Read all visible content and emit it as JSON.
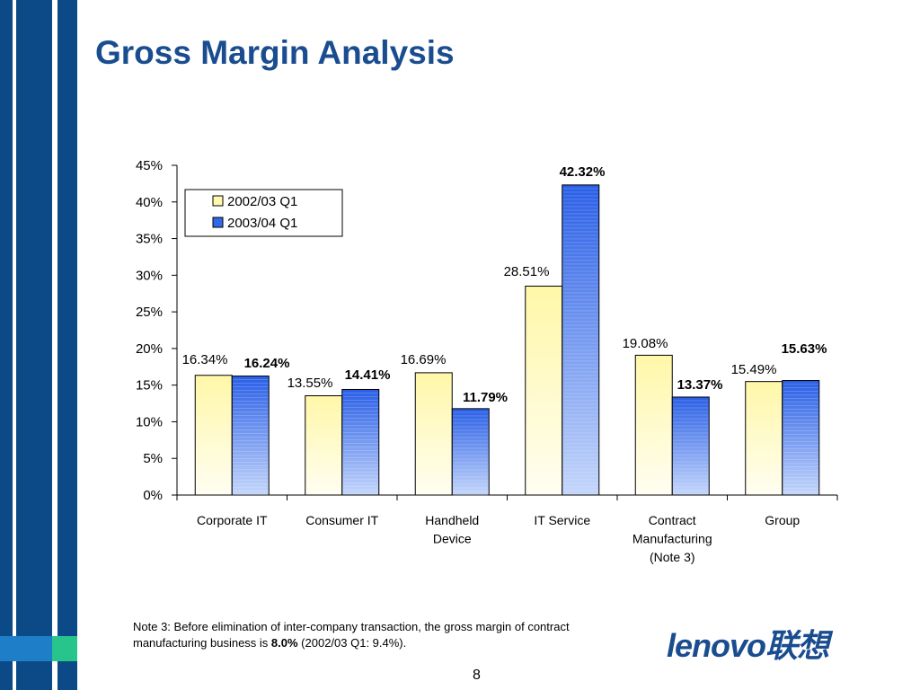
{
  "slide": {
    "title": "Gross Margin Analysis",
    "note_prefix": "Note 3:  Before elimination of inter-company transaction, the gross margin of contract manufacturing business is ",
    "note_bold": "8.0%",
    "note_suffix": " (2002/03 Q1: 9.4%).",
    "page_number": "8",
    "logo_text": "lenovo联想"
  },
  "colors": {
    "brand_blue": "#1a4d8f",
    "stripe_blue": "#0b4a86",
    "series1": "#fff9b0",
    "series2": "#2f68e8"
  },
  "chart_data": {
    "type": "bar",
    "categories": [
      [
        "Corporate IT"
      ],
      [
        "Consumer IT"
      ],
      [
        "Handheld",
        "Device"
      ],
      [
        "IT Service"
      ],
      [
        "Contract",
        "Manufacturing",
        "(Note 3)"
      ],
      [
        "Group"
      ]
    ],
    "series": [
      {
        "name": "2002/03 Q1",
        "values": [
          16.34,
          13.55,
          16.69,
          28.51,
          19.08,
          15.49
        ],
        "labels": [
          "16.34%",
          "13.55%",
          "16.69%",
          "28.51%",
          "19.08%",
          "15.49%"
        ]
      },
      {
        "name": "2003/04 Q1",
        "values": [
          16.24,
          14.41,
          11.79,
          42.32,
          13.37,
          15.63
        ],
        "labels": [
          "16.24%",
          "14.41%",
          "11.79%",
          "42.32%",
          "13.37%",
          "15.63%"
        ]
      }
    ],
    "ylim": [
      0,
      45
    ],
    "yticks": [
      0,
      5,
      10,
      15,
      20,
      25,
      30,
      35,
      40,
      45
    ],
    "ytick_labels": [
      "0%",
      "5%",
      "10%",
      "15%",
      "20%",
      "25%",
      "30%",
      "35%",
      "40%",
      "45%"
    ],
    "legend_position": "top-left",
    "grid": false
  }
}
